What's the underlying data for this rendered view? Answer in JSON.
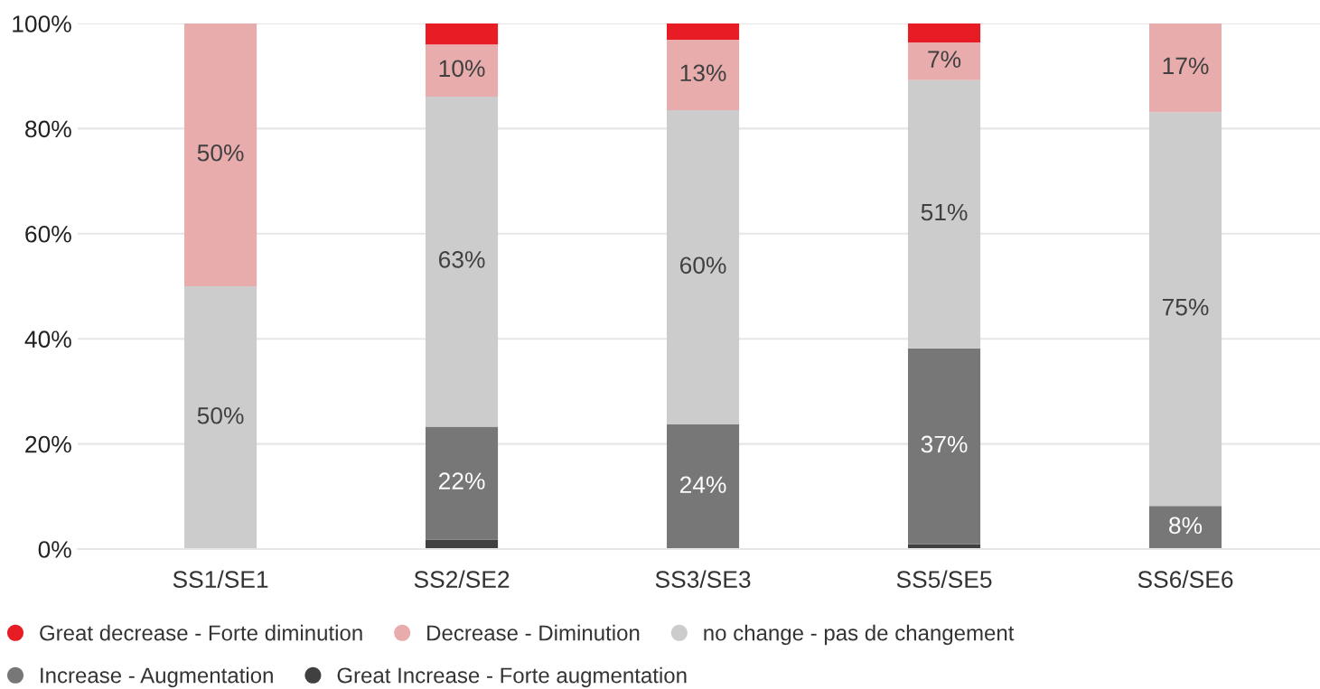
{
  "chart_data": {
    "type": "bar",
    "stacked": true,
    "categories": [
      "SS1/SE1",
      "SS2/SE2",
      "SS3/SE3",
      "SS5/SE5",
      "SS6/SE6"
    ],
    "series": [
      {
        "name": "Great Increase - Forte augmentation",
        "color": "#404040",
        "values": [
          null,
          1.8,
          null,
          0.9,
          null
        ]
      },
      {
        "name": "Increase - Augmentation",
        "color": "#777777",
        "values": [
          null,
          21.5,
          23.7,
          37.3,
          8.2
        ],
        "value_labels": [
          null,
          "22%",
          "24%",
          "37%",
          "8%"
        ]
      },
      {
        "name": "no change - pas de changement",
        "color": "#cccccc",
        "values": [
          50,
          62.8,
          59.8,
          51.0,
          74.9
        ],
        "value_labels": [
          "50%",
          "63%",
          "60%",
          "51%",
          "75%"
        ]
      },
      {
        "name": "Decrease - Diminution",
        "color": "#e8acad",
        "values": [
          50,
          9.9,
          13.4,
          7.2,
          16.9
        ],
        "value_labels": [
          "50%",
          "10%",
          "13%",
          "7%",
          "17%"
        ]
      },
      {
        "name": "Great decrease - Forte diminution",
        "color": "#e81c24",
        "values": [
          null,
          4.0,
          3.1,
          3.6,
          null
        ]
      }
    ],
    "ylim": [
      0,
      100
    ],
    "yticks": [
      {
        "value": 0,
        "label": "0%"
      },
      {
        "value": 20,
        "label": "20%"
      },
      {
        "value": 40,
        "label": "40%"
      },
      {
        "value": 60,
        "label": "60%"
      },
      {
        "value": 80,
        "label": "80%"
      },
      {
        "value": 100,
        "label": "100%"
      }
    ],
    "grid": "y",
    "legend": "bottom"
  }
}
